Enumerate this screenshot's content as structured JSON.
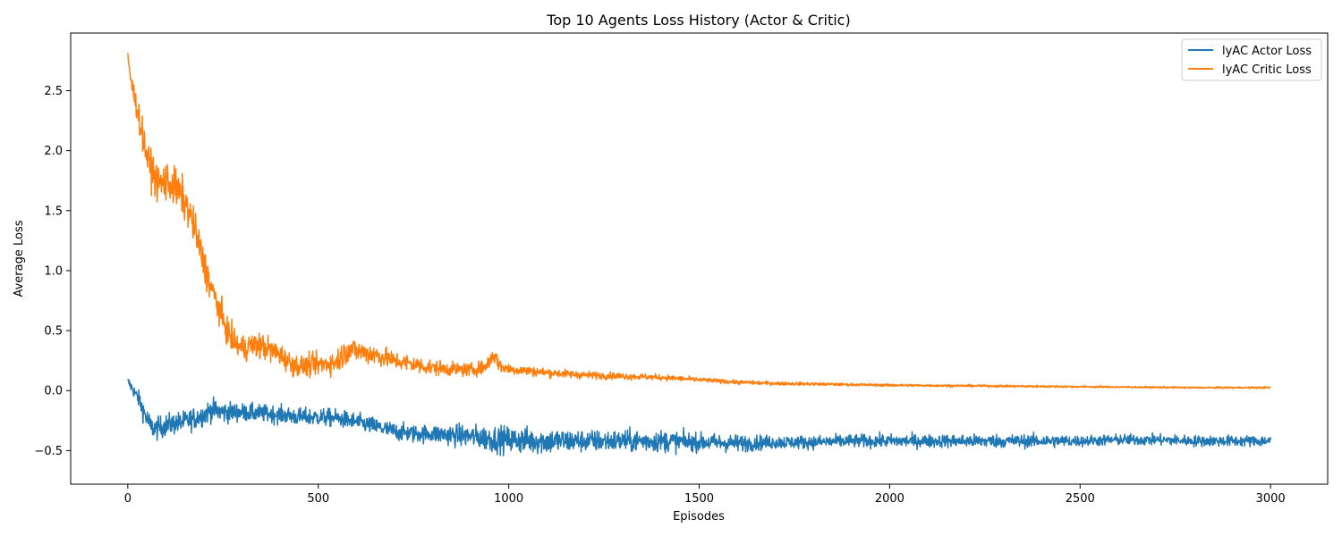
{
  "chart_data": {
    "type": "line",
    "title": "Top 10 Agents Loss History (Actor & Critic)",
    "xlabel": "Episodes",
    "ylabel": "Average Loss",
    "xlim": [
      -150,
      3150
    ],
    "ylim": [
      -0.78,
      2.98
    ],
    "xticks": [
      0,
      500,
      1000,
      1500,
      2000,
      2500,
      3000
    ],
    "xtick_labels": [
      "0",
      "500",
      "1000",
      "1500",
      "2000",
      "2500",
      "3000"
    ],
    "yticks": [
      -0.5,
      0.0,
      0.5,
      1.0,
      1.5,
      2.0,
      2.5
    ],
    "ytick_labels": [
      "−0.5",
      "0.0",
      "0.5",
      "1.0",
      "1.5",
      "2.0",
      "2.5"
    ],
    "grid": false,
    "legend_position": "top-right",
    "series": [
      {
        "name": "lyAC Actor Loss",
        "color": "#1f77b4",
        "x": [
          0,
          15,
          30,
          45,
          60,
          75,
          90,
          110,
          130,
          150,
          175,
          200,
          220,
          250,
          300,
          350,
          400,
          450,
          500,
          550,
          600,
          650,
          700,
          750,
          800,
          850,
          900,
          950,
          1000,
          1100,
          1200,
          1300,
          1400,
          1500,
          1600,
          1700,
          1800,
          1900,
          2000,
          2100,
          2200,
          2300,
          2400,
          2500,
          2600,
          2700,
          2800,
          2900,
          3000
        ],
        "y": [
          0.08,
          0.0,
          -0.08,
          -0.2,
          -0.3,
          -0.32,
          -0.3,
          -0.28,
          -0.27,
          -0.26,
          -0.23,
          -0.2,
          -0.16,
          -0.18,
          -0.18,
          -0.19,
          -0.2,
          -0.22,
          -0.22,
          -0.23,
          -0.26,
          -0.3,
          -0.34,
          -0.36,
          -0.36,
          -0.37,
          -0.38,
          -0.4,
          -0.41,
          -0.42,
          -0.42,
          -0.42,
          -0.42,
          -0.43,
          -0.44,
          -0.43,
          -0.43,
          -0.42,
          -0.42,
          -0.42,
          -0.42,
          -0.42,
          -0.42,
          -0.42,
          -0.41,
          -0.41,
          -0.42,
          -0.42,
          -0.42
        ],
        "noise": [
          0.02,
          0.03,
          0.04,
          0.05,
          0.05,
          0.05,
          0.05,
          0.05,
          0.05,
          0.05,
          0.05,
          0.05,
          0.05,
          0.05,
          0.04,
          0.04,
          0.04,
          0.04,
          0.04,
          0.04,
          0.04,
          0.04,
          0.04,
          0.04,
          0.04,
          0.05,
          0.05,
          0.06,
          0.06,
          0.06,
          0.05,
          0.05,
          0.05,
          0.04,
          0.04,
          0.03,
          0.03,
          0.03,
          0.03,
          0.03,
          0.03,
          0.03,
          0.03,
          0.025,
          0.025,
          0.025,
          0.025,
          0.025,
          0.025
        ]
      },
      {
        "name": "lyAC Critic Loss",
        "color": "#ff7f0e",
        "x": [
          0,
          10,
          25,
          40,
          55,
          70,
          85,
          100,
          120,
          140,
          160,
          180,
          200,
          220,
          240,
          260,
          280,
          300,
          330,
          360,
          400,
          430,
          460,
          500,
          540,
          560,
          580,
          600,
          650,
          700,
          750,
          800,
          850,
          900,
          940,
          960,
          980,
          1000,
          1100,
          1200,
          1300,
          1400,
          1500,
          1600,
          1700,
          1800,
          1900,
          2000,
          2200,
          2400,
          2600,
          2800,
          3000
        ],
        "y": [
          2.78,
          2.55,
          2.35,
          2.1,
          1.9,
          1.78,
          1.72,
          1.75,
          1.7,
          1.63,
          1.5,
          1.3,
          1.05,
          0.85,
          0.68,
          0.5,
          0.4,
          0.35,
          0.38,
          0.36,
          0.3,
          0.22,
          0.2,
          0.22,
          0.23,
          0.28,
          0.35,
          0.33,
          0.3,
          0.25,
          0.22,
          0.19,
          0.18,
          0.17,
          0.2,
          0.3,
          0.2,
          0.18,
          0.15,
          0.13,
          0.12,
          0.11,
          0.09,
          0.07,
          0.06,
          0.055,
          0.05,
          0.045,
          0.04,
          0.035,
          0.03,
          0.025,
          0.025
        ],
        "noise": [
          0.03,
          0.05,
          0.06,
          0.07,
          0.08,
          0.08,
          0.09,
          0.09,
          0.09,
          0.09,
          0.08,
          0.08,
          0.08,
          0.07,
          0.07,
          0.06,
          0.06,
          0.06,
          0.06,
          0.06,
          0.05,
          0.05,
          0.05,
          0.05,
          0.05,
          0.06,
          0.06,
          0.05,
          0.05,
          0.04,
          0.04,
          0.035,
          0.03,
          0.03,
          0.03,
          0.04,
          0.03,
          0.025,
          0.02,
          0.017,
          0.015,
          0.013,
          0.01,
          0.009,
          0.008,
          0.007,
          0.006,
          0.006,
          0.005,
          0.005,
          0.004,
          0.004,
          0.004
        ]
      }
    ]
  }
}
